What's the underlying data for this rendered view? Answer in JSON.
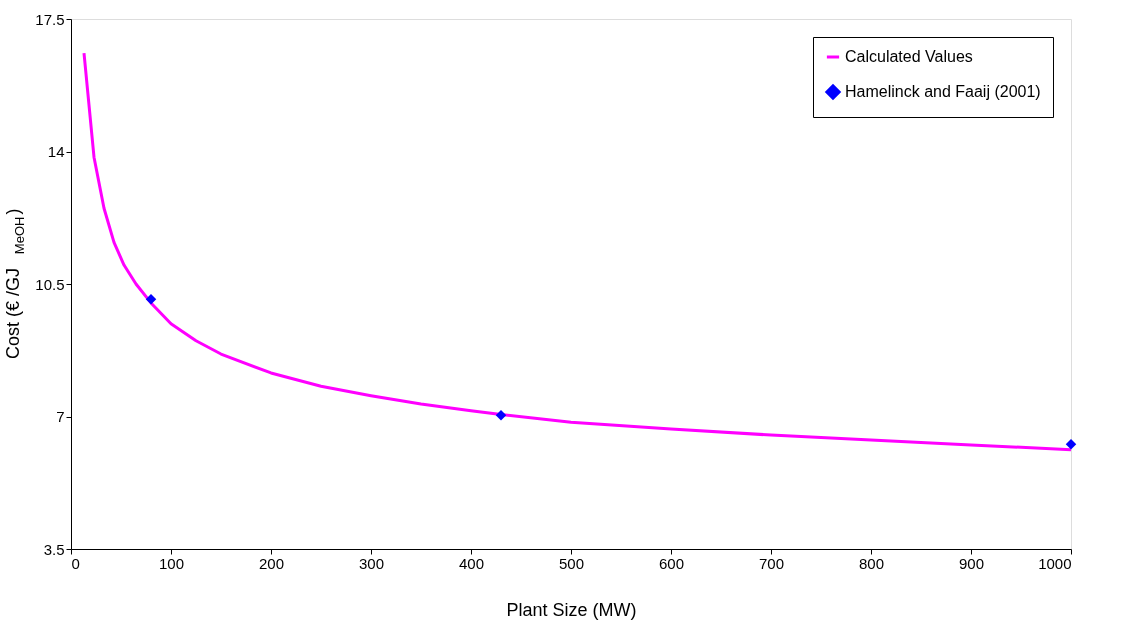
{
  "chart_data": {
    "type": "line",
    "xlabel": "Plant Size (MW)",
    "ylabel": "Cost (€ /GJ$_{MeOH}$)",
    "xlim": [
      0,
      1000
    ],
    "xticks": [
      0,
      100,
      200,
      300,
      400,
      500,
      600,
      700,
      800,
      900,
      1000
    ],
    "ylim": [
      3.5,
      17.5
    ],
    "yticks": [
      3.5,
      7,
      10.5,
      14,
      17.5
    ],
    "grid": false,
    "legend": "top right",
    "series": [
      {
        "name": "Calculated Values",
        "type": "line",
        "color": "#ff00ff",
        "marker": "none",
        "x": [
          13,
          23,
          33,
          43,
          53,
          65,
          80,
          100,
          125,
          150,
          200,
          250,
          300,
          350,
          400,
          430,
          500,
          600,
          700,
          800,
          900,
          1000
        ],
        "values": [
          16.6,
          13.85,
          12.5,
          11.6,
          11.0,
          10.5,
          10.0,
          9.45,
          9.0,
          8.65,
          8.15,
          7.8,
          7.55,
          7.33,
          7.15,
          7.05,
          6.85,
          6.67,
          6.51,
          6.38,
          6.25,
          6.12
        ]
      },
      {
        "name": "Hamelinck and Faaij (2001)",
        "type": "scatter",
        "color": "#0000ff",
        "marker": "diamond",
        "x": [
          80,
          430,
          1000
        ],
        "values": [
          10.1,
          7.03,
          6.27
        ]
      }
    ]
  }
}
